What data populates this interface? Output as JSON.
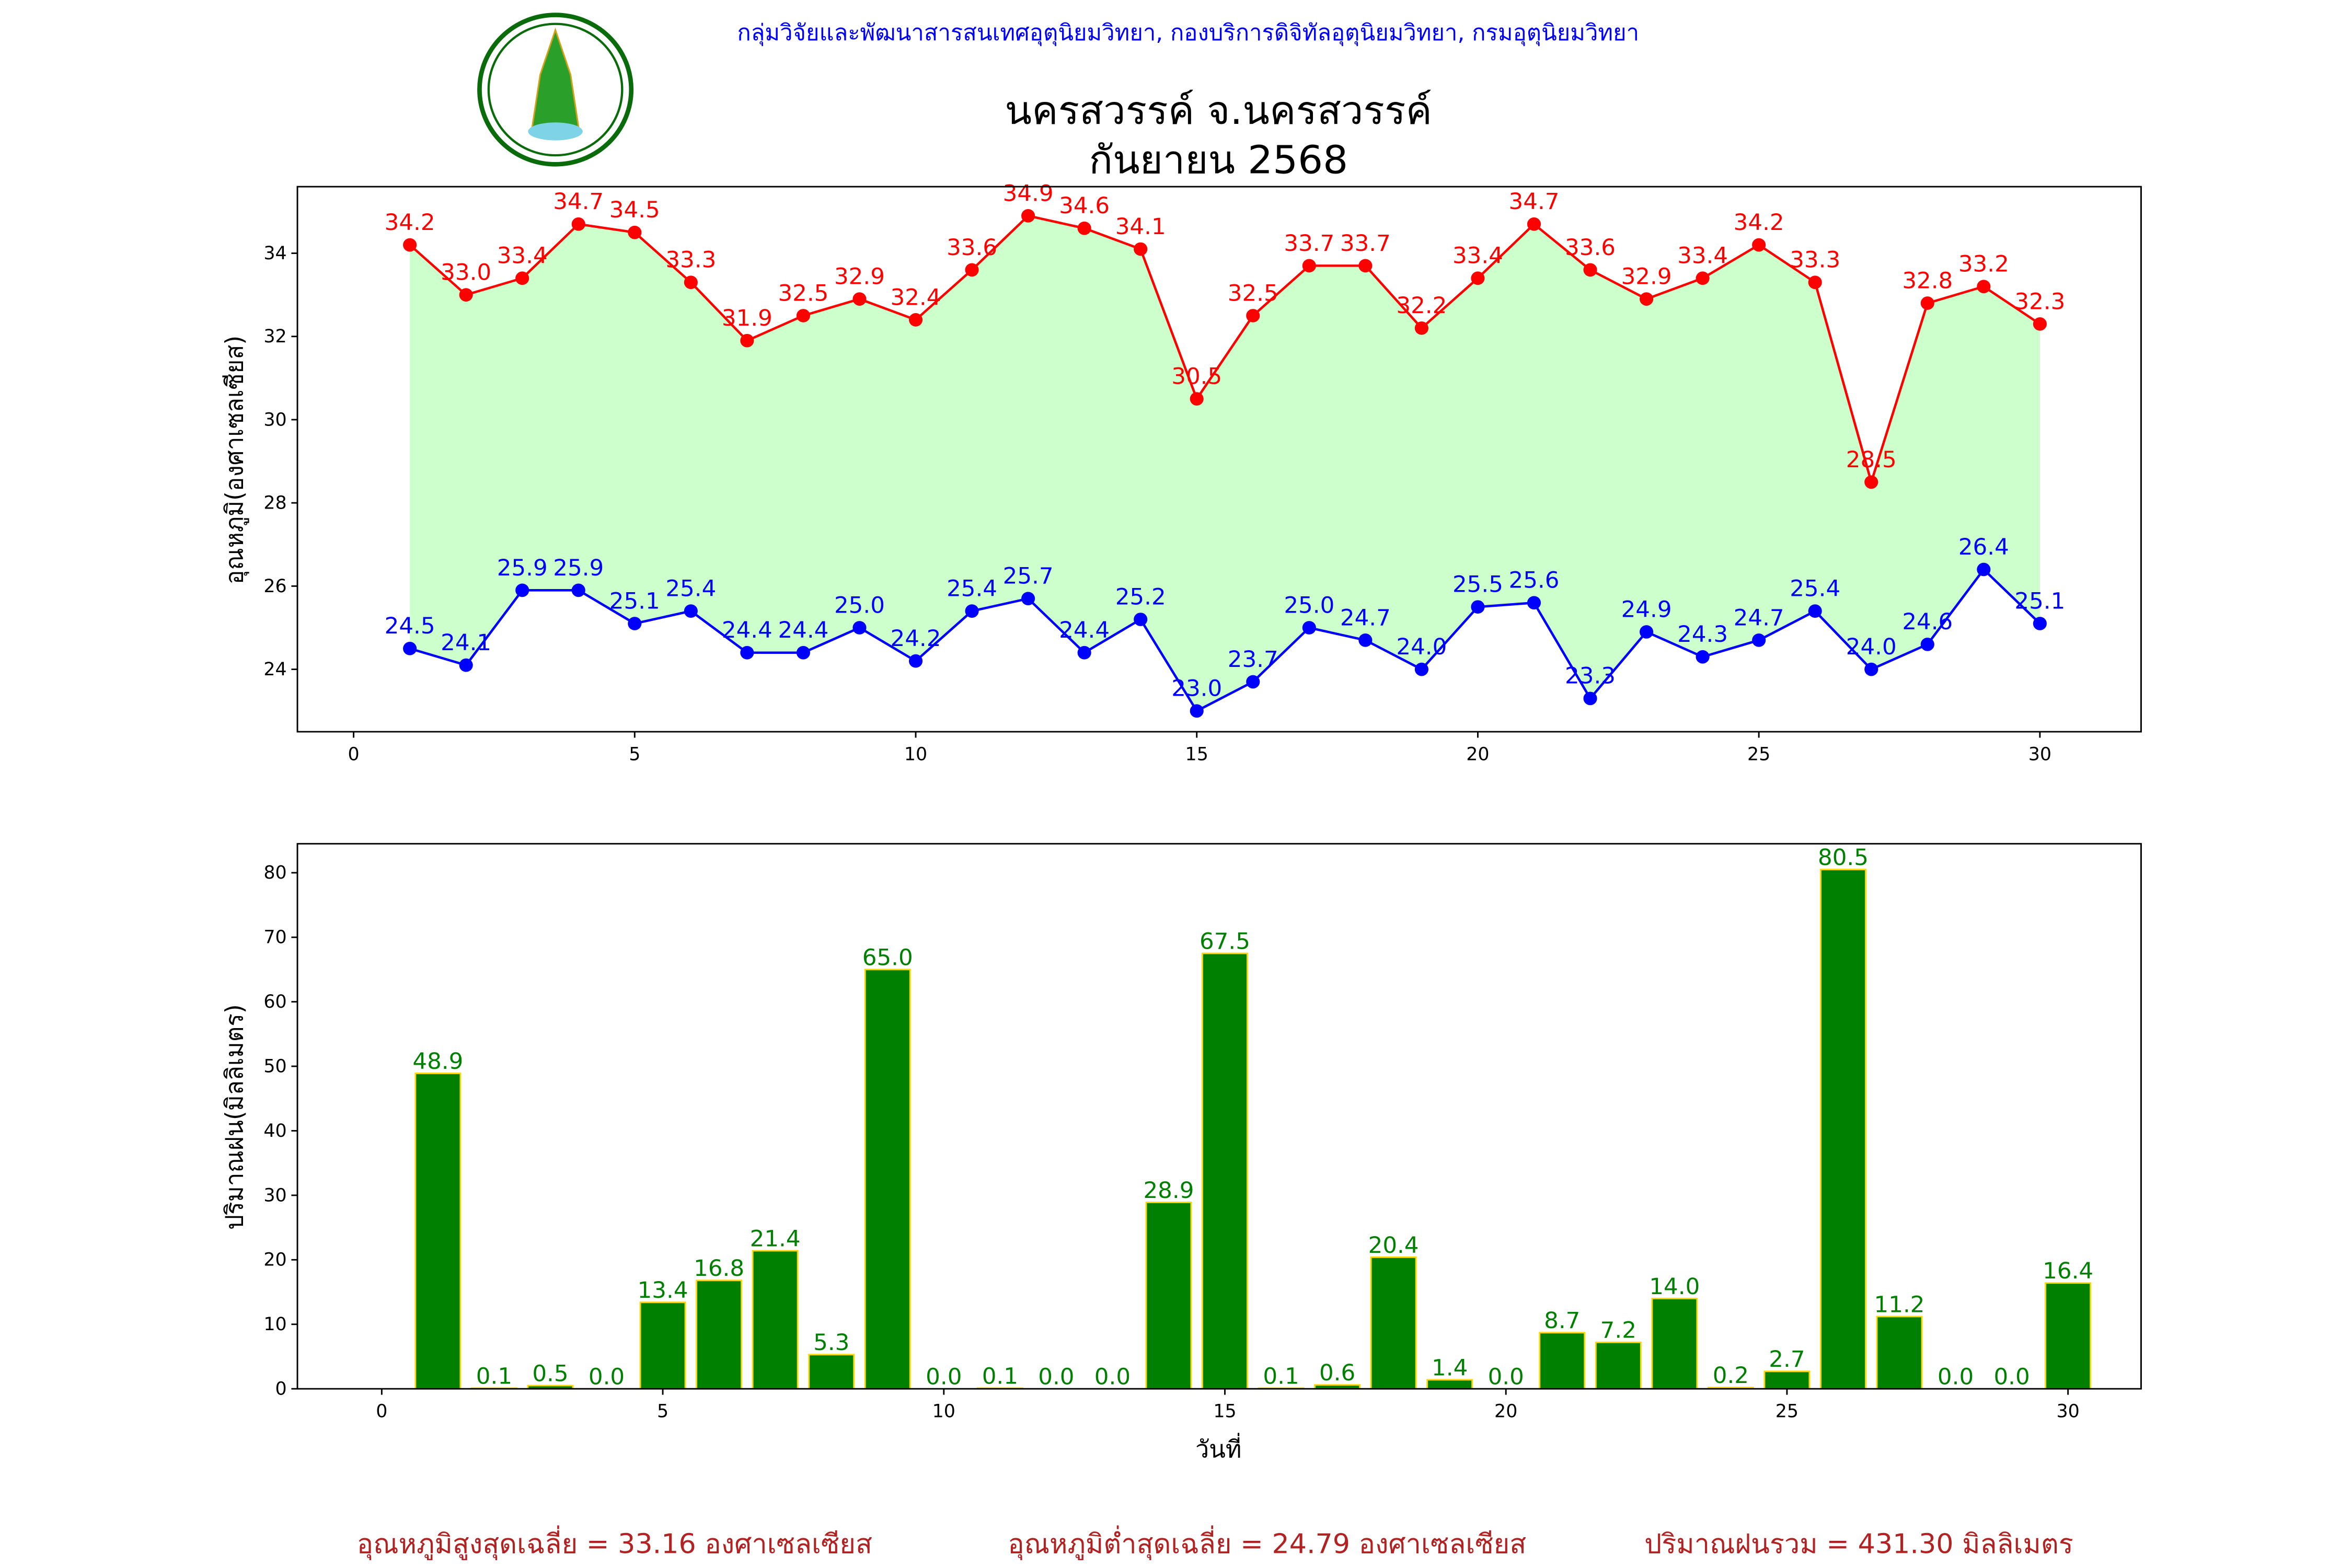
{
  "header": {
    "org_line": "กลุ่มวิจัยและพัฒนาสารสนเทศอุตุนิยมวิทยา, กองบริการดิจิทัลอุตุนิยมวิทยา, กรมอุตุนิยมวิทยา",
    "title_line1": "นครสวรรค์  จ.นครสวรรค์",
    "title_line2": "กันยายน 2568",
    "logo_text": "กรมอุตุนิยมวิทยา METEOROLOGICAL DEPARTMENT"
  },
  "colors": {
    "max": "#ff0000",
    "min": "#0000ff",
    "fill": "#ccffcc",
    "bar": "#008000",
    "bar_edge": "#ffd700",
    "bar_label": "#008000",
    "footer": "#b22222",
    "org": "#0000ff"
  },
  "chart_data": [
    {
      "type": "line",
      "ylabel": "อุณหภูมิ(องศาเซลเซียส)",
      "xlim": [
        -1,
        31.8
      ],
      "ylim": [
        22.5,
        35.6
      ],
      "xticks": [
        0,
        5,
        10,
        15,
        20,
        25,
        30
      ],
      "yticks": [
        24,
        26,
        28,
        30,
        32,
        34
      ],
      "x": [
        1,
        2,
        3,
        4,
        5,
        6,
        7,
        8,
        9,
        10,
        11,
        12,
        13,
        14,
        15,
        16,
        17,
        18,
        19,
        20,
        21,
        22,
        23,
        24,
        25,
        26,
        27,
        28,
        29,
        30
      ],
      "series": [
        {
          "name": "max",
          "values": [
            34.2,
            33.0,
            33.4,
            34.7,
            34.5,
            33.3,
            31.9,
            32.5,
            32.9,
            32.4,
            33.6,
            34.9,
            34.6,
            34.1,
            30.5,
            32.5,
            33.7,
            33.7,
            32.2,
            33.4,
            34.7,
            33.6,
            32.9,
            33.4,
            34.2,
            33.3,
            28.5,
            32.8,
            33.2,
            32.3
          ]
        },
        {
          "name": "min",
          "values": [
            24.5,
            24.1,
            25.9,
            25.9,
            25.1,
            25.4,
            24.4,
            24.4,
            25.0,
            24.2,
            25.4,
            25.7,
            24.4,
            25.2,
            23.0,
            23.7,
            25.0,
            24.7,
            24.0,
            25.5,
            25.6,
            23.3,
            24.9,
            24.3,
            24.7,
            25.4,
            24.0,
            24.6,
            26.4,
            25.1
          ]
        }
      ]
    },
    {
      "type": "bar",
      "xlabel": "วันที่",
      "ylabel": "ปริมาณฝน(มิลลิเมตร)",
      "xlim": [
        -1.5,
        31.3
      ],
      "ylim": [
        0,
        84.5
      ],
      "xticks": [
        0,
        5,
        10,
        15,
        20,
        25,
        30
      ],
      "yticks": [
        0,
        10,
        20,
        30,
        40,
        50,
        60,
        70,
        80
      ],
      "x": [
        1,
        2,
        3,
        4,
        5,
        6,
        7,
        8,
        9,
        10,
        11,
        12,
        13,
        14,
        15,
        16,
        17,
        18,
        19,
        20,
        21,
        22,
        23,
        24,
        25,
        26,
        27,
        28,
        29,
        30
      ],
      "values": [
        48.9,
        0.1,
        0.5,
        0.0,
        13.4,
        16.8,
        21.4,
        5.3,
        65.0,
        0.0,
        0.1,
        0.0,
        0.0,
        28.9,
        67.5,
        0.1,
        0.6,
        20.4,
        1.4,
        0.0,
        8.7,
        7.2,
        14.0,
        0.2,
        2.7,
        80.5,
        11.2,
        0.0,
        0.0,
        16.4
      ]
    }
  ],
  "footer": {
    "avg_max": "อุณหภูมิสูงสุดเฉลี่ย = 33.16 องศาเซลเซียส",
    "avg_min": "อุณหภูมิต่ำสุดเฉลี่ย = 24.79 องศาเซลเซียส",
    "total_rain": "ปริมาณฝนรวม = 431.30 มิลลิเมตร"
  }
}
